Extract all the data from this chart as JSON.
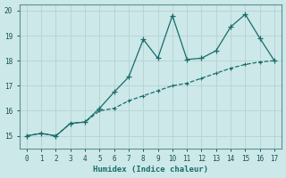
{
  "xlabel": "Humidex (Indice chaleur)",
  "bg_color": "#cce8e8",
  "grid_color": "#b8d4d4",
  "line_color": "#1a6b6b",
  "xlim": [
    -0.5,
    17.5
  ],
  "ylim": [
    14.5,
    20.25
  ],
  "yticks": [
    15,
    16,
    17,
    18,
    19,
    20
  ],
  "xticks": [
    0,
    1,
    2,
    3,
    4,
    5,
    6,
    7,
    8,
    9,
    10,
    11,
    12,
    13,
    14,
    15,
    16,
    17
  ],
  "jagged_x": [
    0,
    1,
    2,
    3,
    4,
    5,
    6,
    7,
    8,
    9,
    10,
    11,
    12,
    13,
    14,
    15,
    16,
    17
  ],
  "jagged_y": [
    15.0,
    15.1,
    15.0,
    15.5,
    15.55,
    16.1,
    16.75,
    17.35,
    18.85,
    18.1,
    19.8,
    18.05,
    18.1,
    18.4,
    19.35,
    19.85,
    18.9,
    18.0
  ],
  "trend_x": [
    0,
    1,
    2,
    3,
    4,
    5,
    6,
    7,
    8,
    9,
    10,
    11,
    12,
    13,
    14,
    15,
    16,
    17
  ],
  "trend_y": [
    15.0,
    15.1,
    15.0,
    15.5,
    15.55,
    16.0,
    16.1,
    16.4,
    16.6,
    16.8,
    17.0,
    17.1,
    17.3,
    17.5,
    17.7,
    17.85,
    17.95,
    18.0
  ]
}
